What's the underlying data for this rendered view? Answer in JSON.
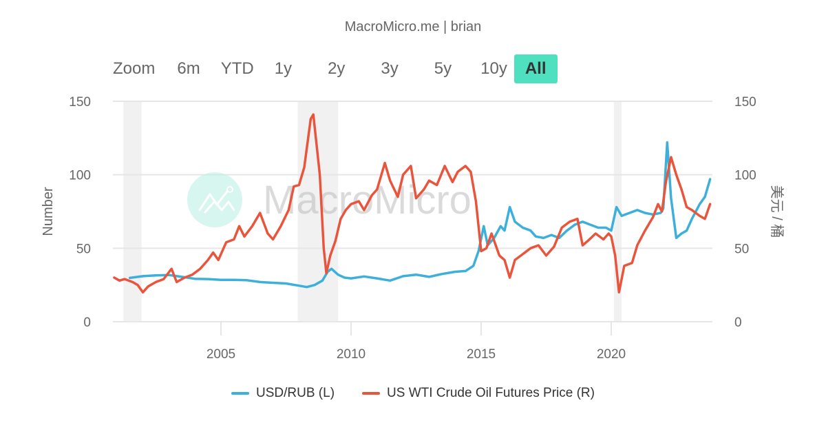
{
  "credit": "MacroMicro.me | brian",
  "range_selector": {
    "label": "Zoom",
    "buttons": [
      "6m",
      "YTD",
      "1y",
      "2y",
      "3y",
      "5y",
      "10y",
      "All"
    ],
    "active": "All"
  },
  "watermark": "MacroMicro",
  "colors": {
    "usdrub": "#3cb0da",
    "wti": "#e9553c",
    "accent": "#4fe0bf",
    "recession": "#f1f1f1",
    "grid": "#e6e6e6"
  },
  "chart_data": {
    "type": "line",
    "title": "",
    "xlabel": "",
    "ylabel_left": "Number",
    "ylabel_right": "美元 / 桶",
    "ylim_left": [
      0,
      150
    ],
    "ylim_right": [
      0,
      150
    ],
    "yticks": [
      0,
      50,
      100,
      150
    ],
    "xticks": [
      2005,
      2010,
      2015,
      2020
    ],
    "xlim": [
      2000.85,
      2023.9
    ],
    "grid": true,
    "legend_position": "bottom",
    "recessions": [
      [
        2001.25,
        2001.95
      ],
      [
        2007.95,
        2009.5
      ],
      [
        2020.1,
        2020.4
      ]
    ],
    "series": [
      {
        "name": "USD/RUB (L)",
        "axis": "left",
        "points": [
          [
            2001.5,
            29.8
          ],
          [
            2002,
            31
          ],
          [
            2002.5,
            31.5
          ],
          [
            2003,
            31.8
          ],
          [
            2003.5,
            30.5
          ],
          [
            2004,
            29.2
          ],
          [
            2004.5,
            29
          ],
          [
            2005,
            28.5
          ],
          [
            2005.5,
            28.5
          ],
          [
            2006,
            28.2
          ],
          [
            2006.5,
            27
          ],
          [
            2007,
            26.5
          ],
          [
            2007.5,
            26
          ],
          [
            2008,
            24.5
          ],
          [
            2008.3,
            23.6
          ],
          [
            2008.6,
            25
          ],
          [
            2008.9,
            28
          ],
          [
            2009.1,
            34
          ],
          [
            2009.25,
            36
          ],
          [
            2009.5,
            32
          ],
          [
            2009.75,
            30
          ],
          [
            2010,
            29.5
          ],
          [
            2010.5,
            30.8
          ],
          [
            2011,
            29.5
          ],
          [
            2011.5,
            28
          ],
          [
            2012,
            31
          ],
          [
            2012.5,
            32
          ],
          [
            2013,
            30.5
          ],
          [
            2013.5,
            32.5
          ],
          [
            2014,
            34
          ],
          [
            2014.4,
            34.5
          ],
          [
            2014.7,
            38
          ],
          [
            2014.9,
            48
          ],
          [
            2015.1,
            65
          ],
          [
            2015.25,
            52
          ],
          [
            2015.5,
            57
          ],
          [
            2015.75,
            65
          ],
          [
            2015.9,
            62
          ],
          [
            2016.1,
            78
          ],
          [
            2016.3,
            68
          ],
          [
            2016.6,
            64
          ],
          [
            2016.9,
            62
          ],
          [
            2017.1,
            58
          ],
          [
            2017.4,
            57
          ],
          [
            2017.7,
            59
          ],
          [
            2018,
            57
          ],
          [
            2018.3,
            62
          ],
          [
            2018.6,
            66
          ],
          [
            2018.9,
            68
          ],
          [
            2019.2,
            66
          ],
          [
            2019.5,
            64
          ],
          [
            2019.8,
            64
          ],
          [
            2020.0,
            62
          ],
          [
            2020.2,
            78
          ],
          [
            2020.4,
            72
          ],
          [
            2020.7,
            74
          ],
          [
            2021.0,
            76
          ],
          [
            2021.3,
            74
          ],
          [
            2021.6,
            73
          ],
          [
            2021.9,
            74
          ],
          [
            2022.0,
            77
          ],
          [
            2022.15,
            122
          ],
          [
            2022.3,
            84
          ],
          [
            2022.5,
            57
          ],
          [
            2022.7,
            60
          ],
          [
            2022.9,
            62
          ],
          [
            2023.1,
            70
          ],
          [
            2023.4,
            80
          ],
          [
            2023.6,
            85
          ],
          [
            2023.8,
            97
          ]
        ]
      },
      {
        "name": "US WTI Crude Oil Futures Price (R)",
        "axis": "right",
        "points": [
          [
            2000.9,
            30
          ],
          [
            2001.1,
            28
          ],
          [
            2001.3,
            29
          ],
          [
            2001.6,
            27
          ],
          [
            2001.8,
            25
          ],
          [
            2002.0,
            20
          ],
          [
            2002.2,
            24
          ],
          [
            2002.5,
            27
          ],
          [
            2002.8,
            29
          ],
          [
            2003.1,
            36
          ],
          [
            2003.3,
            27
          ],
          [
            2003.6,
            30
          ],
          [
            2003.9,
            32
          ],
          [
            2004.2,
            36
          ],
          [
            2004.5,
            42
          ],
          [
            2004.7,
            47
          ],
          [
            2004.9,
            42
          ],
          [
            2005.2,
            54
          ],
          [
            2005.5,
            56
          ],
          [
            2005.7,
            65
          ],
          [
            2005.9,
            58
          ],
          [
            2006.2,
            65
          ],
          [
            2006.5,
            74
          ],
          [
            2006.8,
            60
          ],
          [
            2007.0,
            56
          ],
          [
            2007.3,
            65
          ],
          [
            2007.6,
            76
          ],
          [
            2007.8,
            92
          ],
          [
            2008.0,
            93
          ],
          [
            2008.2,
            105
          ],
          [
            2008.45,
            138
          ],
          [
            2008.55,
            141
          ],
          [
            2008.8,
            100
          ],
          [
            2008.95,
            50
          ],
          [
            2009.05,
            33
          ],
          [
            2009.2,
            45
          ],
          [
            2009.4,
            55
          ],
          [
            2009.6,
            70
          ],
          [
            2009.8,
            76
          ],
          [
            2010.0,
            80
          ],
          [
            2010.3,
            82
          ],
          [
            2010.5,
            76
          ],
          [
            2010.8,
            86
          ],
          [
            2011.0,
            90
          ],
          [
            2011.3,
            108
          ],
          [
            2011.5,
            96
          ],
          [
            2011.8,
            85
          ],
          [
            2012.0,
            100
          ],
          [
            2012.3,
            106
          ],
          [
            2012.5,
            84
          ],
          [
            2012.8,
            90
          ],
          [
            2013.0,
            96
          ],
          [
            2013.3,
            93
          ],
          [
            2013.6,
            106
          ],
          [
            2013.9,
            95
          ],
          [
            2014.1,
            102
          ],
          [
            2014.4,
            106
          ],
          [
            2014.6,
            102
          ],
          [
            2014.8,
            82
          ],
          [
            2015.0,
            48
          ],
          [
            2015.2,
            50
          ],
          [
            2015.4,
            60
          ],
          [
            2015.7,
            45
          ],
          [
            2015.9,
            42
          ],
          [
            2016.1,
            30
          ],
          [
            2016.3,
            42
          ],
          [
            2016.6,
            46
          ],
          [
            2016.9,
            50
          ],
          [
            2017.2,
            52
          ],
          [
            2017.5,
            45
          ],
          [
            2017.8,
            51
          ],
          [
            2018.1,
            64
          ],
          [
            2018.4,
            68
          ],
          [
            2018.7,
            70
          ],
          [
            2018.9,
            52
          ],
          [
            2019.1,
            55
          ],
          [
            2019.4,
            60
          ],
          [
            2019.7,
            56
          ],
          [
            2019.9,
            60
          ],
          [
            2020.0,
            58
          ],
          [
            2020.15,
            45
          ],
          [
            2020.3,
            20
          ],
          [
            2020.5,
            38
          ],
          [
            2020.8,
            40
          ],
          [
            2021.0,
            52
          ],
          [
            2021.3,
            62
          ],
          [
            2021.6,
            71
          ],
          [
            2021.8,
            80
          ],
          [
            2021.95,
            75
          ],
          [
            2022.1,
            95
          ],
          [
            2022.3,
            112
          ],
          [
            2022.5,
            100
          ],
          [
            2022.7,
            90
          ],
          [
            2022.9,
            78
          ],
          [
            2023.1,
            76
          ],
          [
            2023.4,
            72
          ],
          [
            2023.6,
            70
          ],
          [
            2023.8,
            80
          ]
        ]
      }
    ]
  },
  "legend": [
    {
      "label": "USD/RUB (L)",
      "color": "#3cb0da"
    },
    {
      "label": "US WTI Crude Oil Futures Price (R)",
      "color": "#e9553c"
    }
  ]
}
